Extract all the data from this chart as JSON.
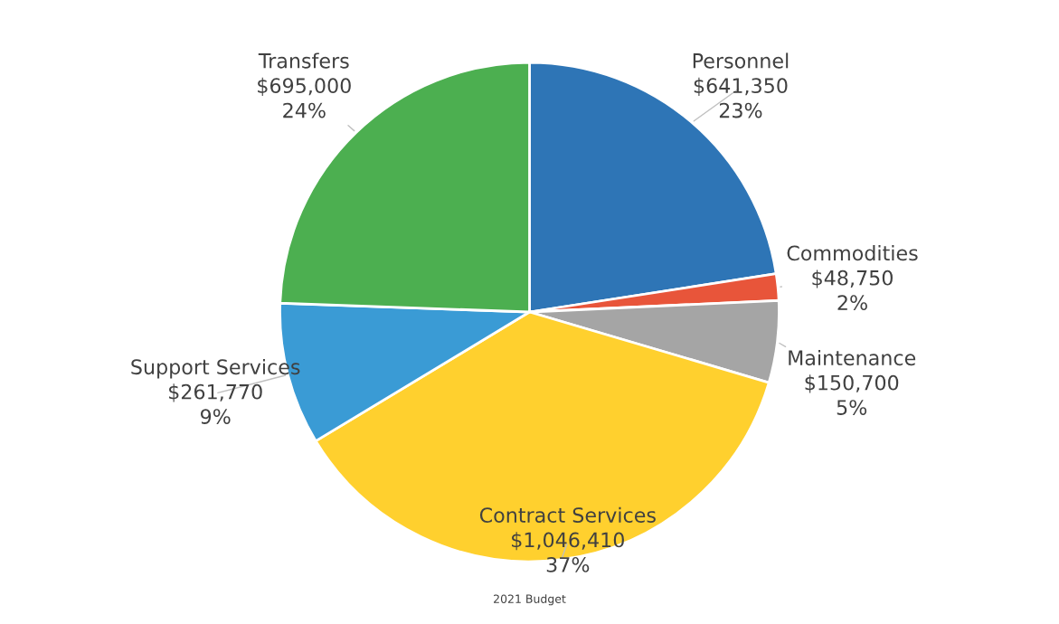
{
  "chart_data": {
    "type": "pie",
    "title": "2021 Budget",
    "categories": [
      "Personnel",
      "Commodities",
      "Maintenance",
      "Contract Services",
      "Support Services",
      "Transfers"
    ],
    "values": [
      641350,
      48750,
      150700,
      1046410,
      261770,
      695000
    ],
    "colors": [
      "#2e75b6",
      "#e8553a",
      "#a5a5a5",
      "#ffd02e",
      "#3a9bd5",
      "#4caf50"
    ],
    "value_labels": [
      "$641,350\n23%",
      "$48,750\n2%",
      "$150,700\n5%",
      "$1,046,410\n37%",
      "$261,770\n9%",
      "$695,000\n24%"
    ]
  }
}
